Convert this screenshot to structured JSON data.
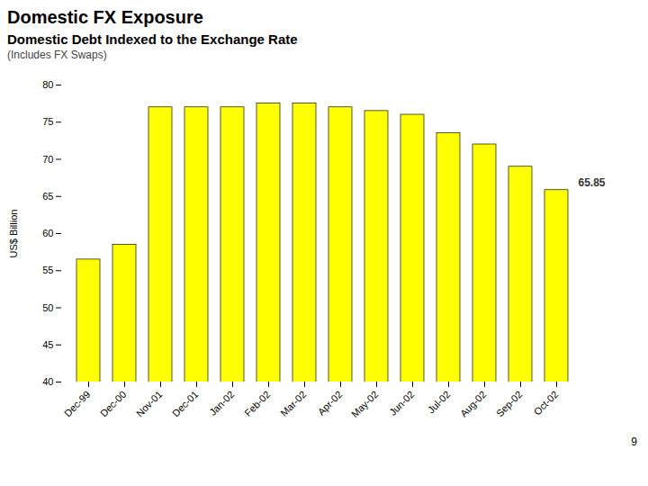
{
  "chart_data": {
    "type": "bar",
    "title": "Domestic FX Exposure",
    "subtitle": "Domestic Debt Indexed to the Exchange Rate",
    "caption": "(Includes FX Swaps)",
    "ylabel": "US$ Billion",
    "categories": [
      "Dec-99",
      "Dec-00",
      "Nov-01",
      "Dec-01",
      "Jan-02",
      "Feb-02",
      "Mar-02",
      "Apr-02",
      "May-02",
      "Jun-02",
      "Jul-02",
      "Aug-02",
      "Sep-02",
      "Oct-02"
    ],
    "values": [
      56.5,
      58.5,
      77.0,
      77.0,
      77.0,
      77.5,
      77.5,
      77.0,
      76.5,
      76.0,
      73.5,
      72.0,
      69.0,
      65.85
    ],
    "color": "#FFFF00",
    "ylim": [
      40,
      80
    ],
    "yticks": [
      40,
      45,
      50,
      55,
      60,
      65,
      70,
      75,
      80
    ],
    "grid": false,
    "annotations": [
      {
        "text": "65.85",
        "x": "Oct-02",
        "y": 65.85
      }
    ],
    "page_number": "9"
  }
}
